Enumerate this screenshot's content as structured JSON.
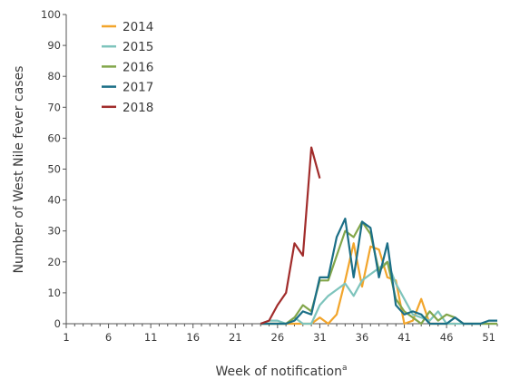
{
  "chart_data": {
    "type": "line",
    "title": "",
    "xlabel": "Week of notification",
    "xlabel_superscript": "a",
    "ylabel": "Number of West Nile fever cases",
    "xlim": [
      1,
      52
    ],
    "ylim": [
      0,
      100
    ],
    "x_ticks": [
      1,
      6,
      11,
      16,
      21,
      26,
      31,
      36,
      41,
      46,
      51
    ],
    "y_ticks": [
      0,
      10,
      20,
      30,
      40,
      50,
      60,
      70,
      80,
      90,
      100
    ],
    "grid": false,
    "legend_position": "top-left",
    "series": [
      {
        "name": "2014",
        "color": "#f2a52b",
        "points": [
          [
            24,
            0
          ],
          [
            25,
            0
          ],
          [
            26,
            0
          ],
          [
            27,
            0
          ],
          [
            28,
            0
          ],
          [
            29,
            0
          ],
          [
            30,
            0
          ],
          [
            31,
            2
          ],
          [
            32,
            0
          ],
          [
            33,
            3
          ],
          [
            34,
            14
          ],
          [
            35,
            26
          ],
          [
            36,
            12
          ],
          [
            37,
            25
          ],
          [
            38,
            24
          ],
          [
            39,
            15
          ],
          [
            40,
            14
          ],
          [
            41,
            0
          ],
          [
            42,
            1
          ],
          [
            43,
            8
          ],
          [
            44,
            0
          ],
          [
            45,
            0
          ],
          [
            46,
            0
          ],
          [
            47,
            0
          ]
        ]
      },
      {
        "name": "2015",
        "color": "#7ec4bc",
        "points": [
          [
            24,
            0
          ],
          [
            25,
            1
          ],
          [
            26,
            1
          ],
          [
            27,
            0
          ],
          [
            28,
            2
          ],
          [
            29,
            0
          ],
          [
            30,
            0
          ],
          [
            31,
            6
          ],
          [
            32,
            9
          ],
          [
            33,
            11
          ],
          [
            34,
            13
          ],
          [
            35,
            9
          ],
          [
            36,
            14
          ],
          [
            37,
            16
          ],
          [
            38,
            18
          ],
          [
            39,
            20
          ],
          [
            40,
            13
          ],
          [
            41,
            8
          ],
          [
            42,
            3
          ],
          [
            43,
            2
          ],
          [
            44,
            1
          ],
          [
            45,
            4
          ],
          [
            46,
            0
          ],
          [
            47,
            0
          ],
          [
            48,
            0
          ],
          [
            49,
            0
          ],
          [
            50,
            0
          ],
          [
            51,
            0
          ],
          [
            52,
            0
          ]
        ]
      },
      {
        "name": "2016",
        "color": "#82a64a",
        "points": [
          [
            24,
            0
          ],
          [
            25,
            0
          ],
          [
            26,
            0
          ],
          [
            27,
            0
          ],
          [
            28,
            2
          ],
          [
            29,
            6
          ],
          [
            30,
            4
          ],
          [
            31,
            14
          ],
          [
            32,
            14
          ],
          [
            33,
            22
          ],
          [
            34,
            30
          ],
          [
            35,
            28
          ],
          [
            36,
            33
          ],
          [
            37,
            29
          ],
          [
            38,
            17
          ],
          [
            39,
            20
          ],
          [
            40,
            8
          ],
          [
            41,
            4
          ],
          [
            42,
            2
          ],
          [
            43,
            0
          ],
          [
            44,
            4
          ],
          [
            45,
            1
          ],
          [
            46,
            3
          ],
          [
            47,
            2
          ],
          [
            48,
            0
          ],
          [
            49,
            0
          ],
          [
            50,
            0
          ],
          [
            51,
            0
          ],
          [
            52,
            0
          ]
        ]
      },
      {
        "name": "2017",
        "color": "#1b6f87",
        "points": [
          [
            24,
            0
          ],
          [
            25,
            0
          ],
          [
            26,
            0
          ],
          [
            27,
            0
          ],
          [
            28,
            1
          ],
          [
            29,
            4
          ],
          [
            30,
            3
          ],
          [
            31,
            15
          ],
          [
            32,
            15
          ],
          [
            33,
            28
          ],
          [
            34,
            34
          ],
          [
            35,
            15
          ],
          [
            36,
            33
          ],
          [
            37,
            31
          ],
          [
            38,
            15
          ],
          [
            39,
            26
          ],
          [
            40,
            6
          ],
          [
            41,
            3
          ],
          [
            42,
            4
          ],
          [
            43,
            3
          ],
          [
            44,
            0
          ],
          [
            45,
            0
          ],
          [
            46,
            0
          ],
          [
            47,
            2
          ],
          [
            48,
            0
          ],
          [
            49,
            0
          ],
          [
            50,
            0
          ],
          [
            51,
            1
          ],
          [
            52,
            1
          ]
        ]
      },
      {
        "name": "2018",
        "color": "#a12c2b",
        "points": [
          [
            24,
            0
          ],
          [
            25,
            1
          ],
          [
            26,
            6
          ],
          [
            27,
            10
          ],
          [
            28,
            26
          ],
          [
            29,
            22
          ],
          [
            30,
            57
          ],
          [
            31,
            47
          ]
        ]
      }
    ]
  }
}
